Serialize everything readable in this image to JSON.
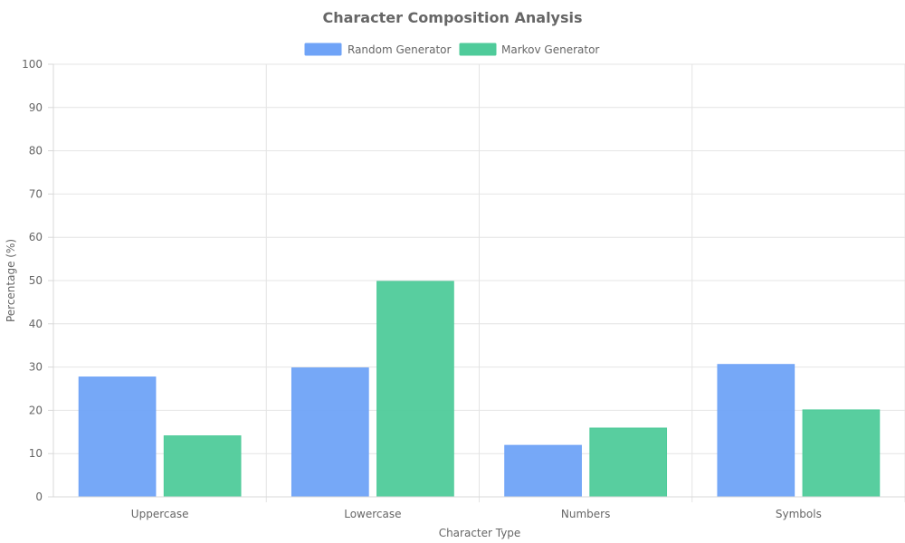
{
  "chart_data": {
    "type": "bar",
    "title": "Character Composition Analysis",
    "xlabel": "Character Type",
    "ylabel": "Percentage (%)",
    "categories": [
      "Uppercase",
      "Lowercase",
      "Numbers",
      "Symbols"
    ],
    "series": [
      {
        "name": "Random Generator",
        "values": [
          27.7,
          29.8,
          11.9,
          30.6
        ],
        "color": "#6fa3f7"
      },
      {
        "name": "Markov Generator",
        "values": [
          14.1,
          49.8,
          15.9,
          20.1
        ],
        "color": "#4fcb9a"
      }
    ],
    "ylim": [
      0,
      100
    ],
    "yticks": [
      "0",
      "10",
      "20",
      "30",
      "40",
      "50",
      "60",
      "70",
      "80",
      "90",
      "100"
    ],
    "grid": true,
    "legend_position": "top-center"
  }
}
